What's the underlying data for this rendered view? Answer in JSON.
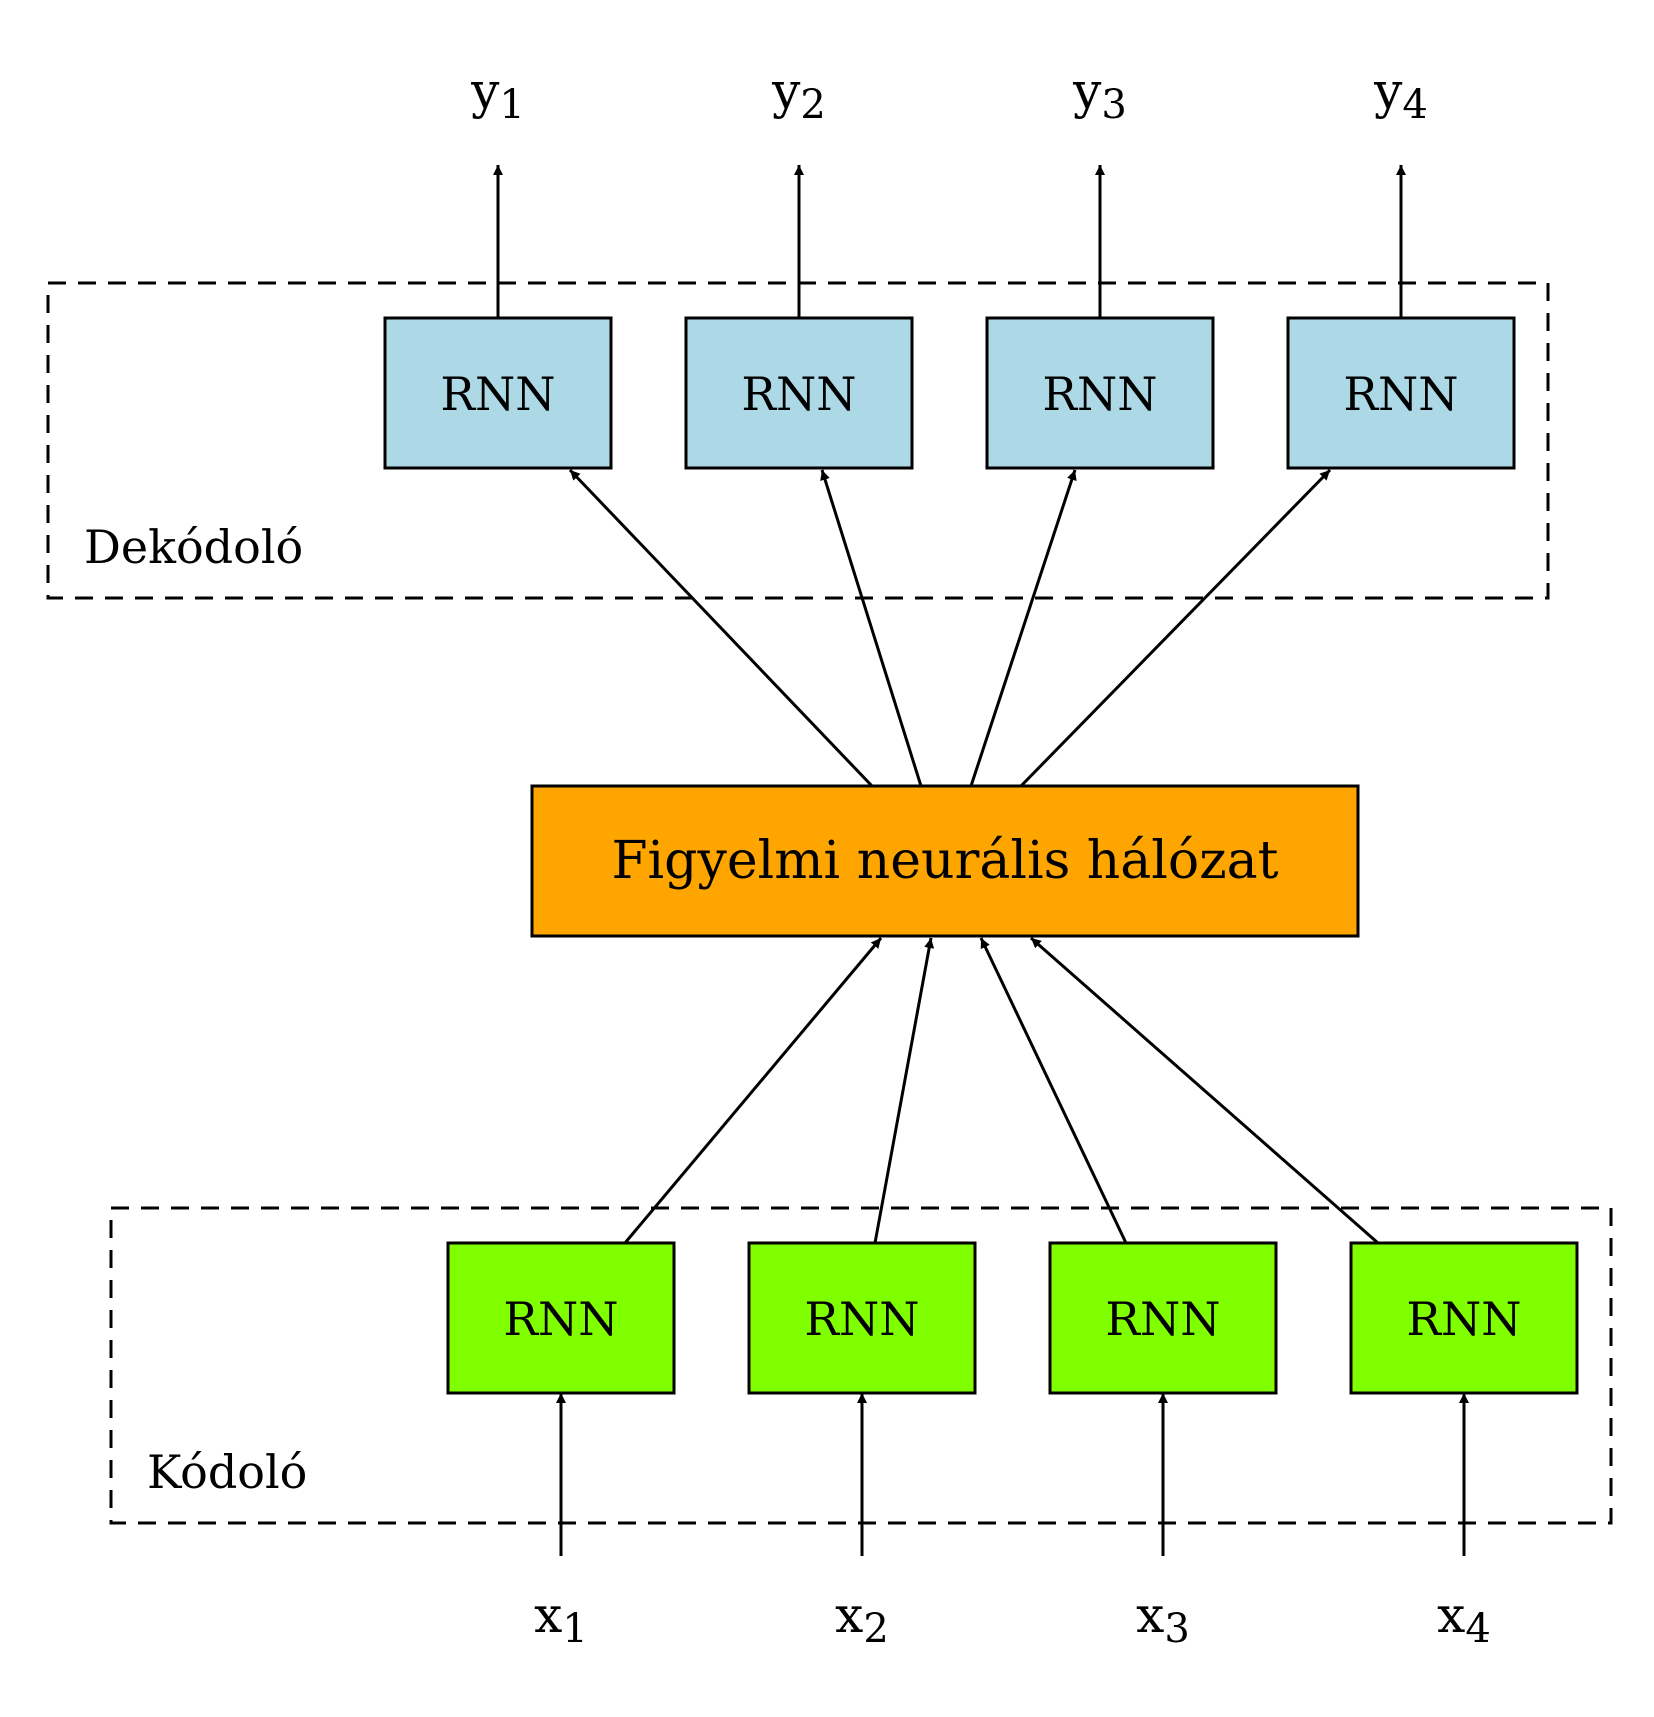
{
  "colors": {
    "decoder_fill": "#add8e6",
    "encoder_fill": "#7fff00",
    "attention_fill": "#ffa500",
    "stroke": "#000000"
  },
  "decoder": {
    "label": "Dekódoló",
    "cells": [
      "RNN",
      "RNN",
      "RNN",
      "RNN"
    ]
  },
  "encoder": {
    "label": "Kódoló",
    "cells": [
      "RNN",
      "RNN",
      "RNN",
      "RNN"
    ]
  },
  "attention": {
    "label": "Figyelmi neurális hálózat"
  },
  "outputs": [
    {
      "base": "y",
      "sub": "1"
    },
    {
      "base": "y",
      "sub": "2"
    },
    {
      "base": "y",
      "sub": "3"
    },
    {
      "base": "y",
      "sub": "4"
    }
  ],
  "inputs": [
    {
      "base": "x",
      "sub": "1"
    },
    {
      "base": "x",
      "sub": "2"
    },
    {
      "base": "x",
      "sub": "3"
    },
    {
      "base": "x",
      "sub": "4"
    }
  ]
}
